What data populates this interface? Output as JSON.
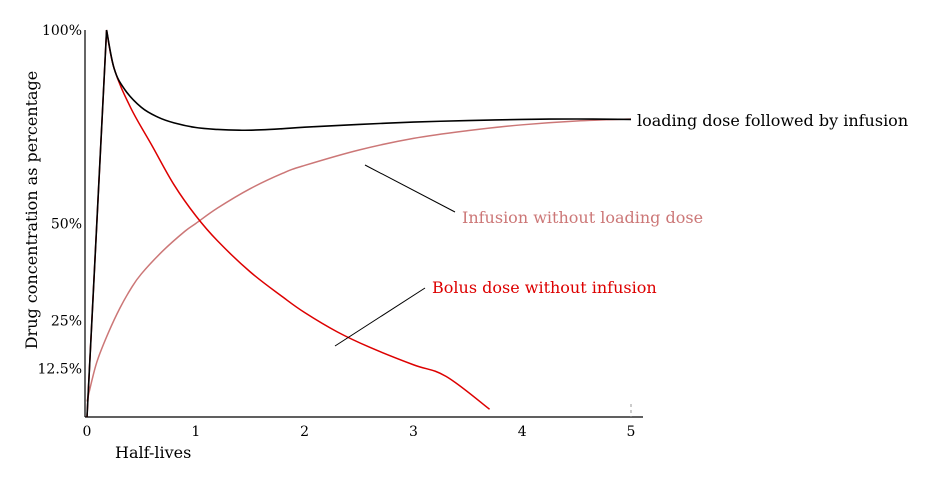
{
  "chart_data": {
    "type": "line",
    "title": "",
    "xlabel": "Half-lives",
    "ylabel": "Drug concentration as percentage",
    "xlim": [
      0,
      5
    ],
    "ylim": [
      0,
      100
    ],
    "x_ticks": [
      {
        "value": 0,
        "label": "0"
      },
      {
        "value": 1,
        "label": "1"
      },
      {
        "value": 2,
        "label": "2"
      },
      {
        "value": 3,
        "label": "3"
      },
      {
        "value": 4,
        "label": "4"
      },
      {
        "value": 5,
        "label": "5"
      }
    ],
    "y_ticks": [
      {
        "value": 12.5,
        "label": "12.5%"
      },
      {
        "value": 25,
        "label": "25%"
      },
      {
        "value": 50,
        "label": "50%"
      },
      {
        "value": 100,
        "label": "100%"
      }
    ],
    "grid": false,
    "series": [
      {
        "name": "loading dose followed by infusion",
        "color": "#000000",
        "label_color": "#000000",
        "x": [
          0,
          0.18,
          0.25,
          0.35,
          0.5,
          0.65,
          0.8,
          1.0,
          1.2,
          1.4,
          1.6,
          1.8,
          2.0,
          2.5,
          3.0,
          3.5,
          4.0,
          4.5,
          5.0
        ],
        "y": [
          0,
          100,
          90,
          84.5,
          80,
          77.5,
          76,
          74.8,
          74.3,
          74.1,
          74.2,
          74.5,
          74.9,
          75.6,
          76.2,
          76.6,
          76.9,
          77.0,
          76.9
        ]
      },
      {
        "name": "Infusion without loading dose",
        "color": "#cc7777",
        "label_color": "#cc7777",
        "x": [
          0,
          0.05,
          0.1,
          0.2,
          0.3,
          0.4,
          0.5,
          0.7,
          0.9,
          1.0,
          1.2,
          1.5,
          1.8,
          2.0,
          2.5,
          3.0,
          3.5,
          4.0,
          4.5,
          5.0
        ],
        "y": [
          4,
          10,
          15,
          22,
          28,
          33,
          37,
          43,
          48,
          50,
          54,
          59,
          63,
          65,
          69,
          72,
          74,
          75.5,
          76.5,
          77
        ]
      },
      {
        "name": "Bolus dose without infusion",
        "color": "#dd0000",
        "label_color": "#dd0000",
        "x": [
          0,
          0.18,
          0.25,
          0.4,
          0.6,
          0.8,
          1.0,
          1.2,
          1.5,
          1.8,
          2.0,
          2.3,
          2.6,
          3.0,
          3.3,
          3.7
        ],
        "y": [
          0,
          100,
          90,
          80,
          70,
          60,
          52,
          45.5,
          37.5,
          31,
          27,
          22,
          18,
          13.5,
          10.5,
          2
        ]
      }
    ]
  }
}
